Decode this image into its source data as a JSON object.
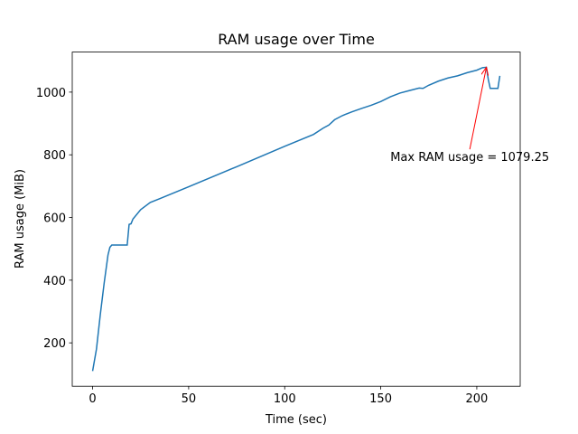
{
  "chart_data": {
    "type": "line",
    "title": "RAM usage over Time",
    "x_label": "Time (sec)",
    "y_label": "RAM usage (MiB)",
    "x": [
      0,
      2,
      4,
      6,
      8,
      9,
      10,
      18,
      19,
      20,
      21,
      25,
      30,
      35,
      50,
      75,
      100,
      115,
      120,
      123,
      126,
      130,
      135,
      140,
      145,
      150,
      155,
      160,
      165,
      170,
      172,
      175,
      180,
      185,
      190,
      195,
      200,
      203,
      205,
      206,
      207,
      211,
      212
    ],
    "series": [
      {
        "name": "RAM usage",
        "color": "#1f77b4",
        "values": [
          110,
          180,
          290,
          390,
          480,
          505,
          512,
          512,
          578,
          580,
          595,
          625,
          648,
          660,
          698,
          762,
          827,
          865,
          885,
          895,
          912,
          925,
          937,
          948,
          958,
          970,
          985,
          997,
          1005,
          1013,
          1012,
          1022,
          1035,
          1045,
          1052,
          1062,
          1070,
          1078,
          1079.25,
          1040,
          1012,
          1012,
          1052
        ]
      }
    ],
    "xlim": [
      -10.6,
      222.6
    ],
    "ylim": [
      61.5,
      1127.75
    ],
    "xticks": [
      0,
      50,
      100,
      150,
      200
    ],
    "yticks": [
      200,
      400,
      600,
      800,
      1000
    ],
    "annotation": {
      "text": "Max RAM usage = 1079.25",
      "x": 205,
      "y": 1079.25,
      "text_x": 155,
      "text_y": 780,
      "color": "#ff0000"
    }
  }
}
